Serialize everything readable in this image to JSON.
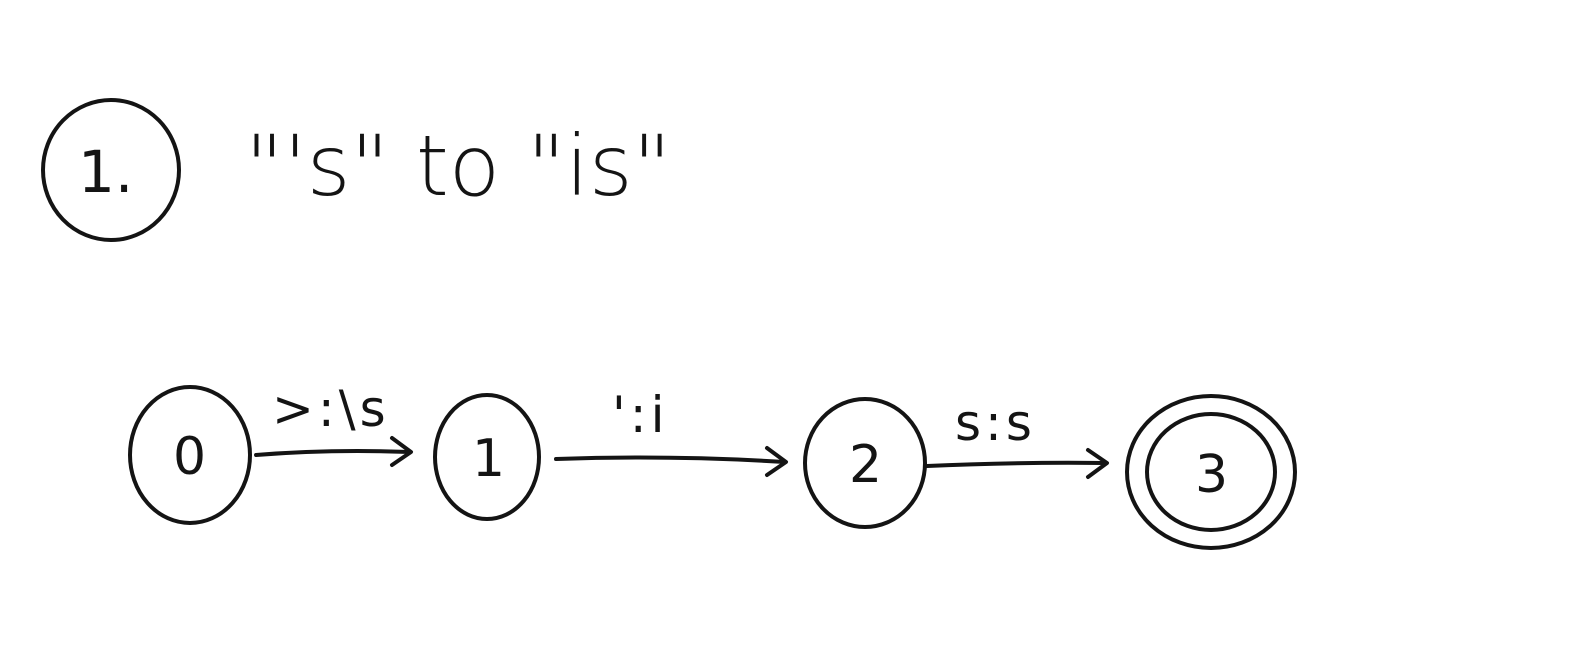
{
  "heading": {
    "number": "1.",
    "text": "\"'s\" to \"is\""
  },
  "fst": {
    "states": [
      {
        "id": "0",
        "label": "0",
        "final": false
      },
      {
        "id": "1",
        "label": "1",
        "final": false
      },
      {
        "id": "2",
        "label": "2",
        "final": false
      },
      {
        "id": "3",
        "label": "3",
        "final": true
      }
    ],
    "transitions": [
      {
        "from": "0",
        "to": "1",
        "label": ">:\\s"
      },
      {
        "from": "1",
        "to": "2",
        "label": "':i"
      },
      {
        "from": "2",
        "to": "3",
        "label": "s:s"
      }
    ]
  }
}
